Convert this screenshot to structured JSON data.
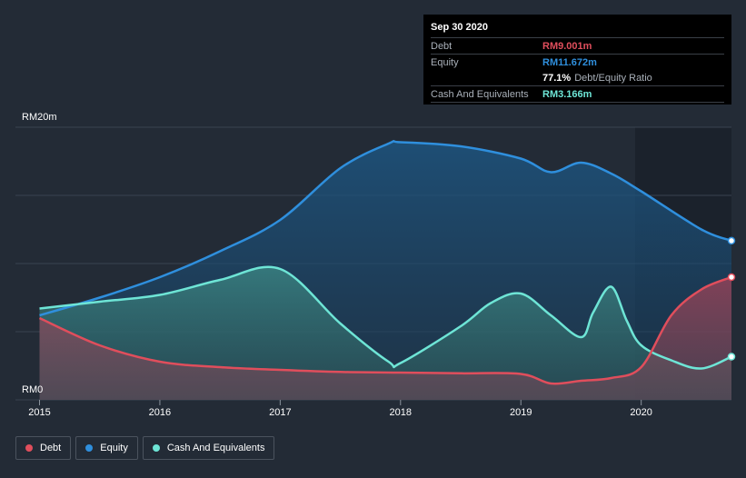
{
  "chart_data": {
    "type": "area",
    "currency_prefix": "RM",
    "ylim": [
      0,
      20
    ],
    "y_tick_labels": [
      "RM20m",
      "RM0"
    ],
    "x_ticks": [
      {
        "x": 2015,
        "label": "2015"
      },
      {
        "x": 2016,
        "label": "2016"
      },
      {
        "x": 2017,
        "label": "2017"
      },
      {
        "x": 2018,
        "label": "2018"
      },
      {
        "x": 2019,
        "label": "2019"
      },
      {
        "x": 2020,
        "label": "2020"
      }
    ],
    "xlim": [
      2014.8,
      2020.75
    ],
    "shaded_region_start": 2019.95,
    "series": [
      {
        "name": "Equity",
        "color": "#2f8fdd",
        "points": [
          [
            2015,
            6.2
          ],
          [
            2015.5,
            7.5
          ],
          [
            2016,
            9.0
          ],
          [
            2016.5,
            10.9
          ],
          [
            2017,
            13.2
          ],
          [
            2017.5,
            17.0
          ],
          [
            2017.9,
            18.8
          ],
          [
            2018,
            18.9
          ],
          [
            2018.5,
            18.6
          ],
          [
            2019,
            17.7
          ],
          [
            2019.25,
            16.7
          ],
          [
            2019.5,
            17.4
          ],
          [
            2019.75,
            16.6
          ],
          [
            2020,
            15.3
          ],
          [
            2020.5,
            12.5
          ],
          [
            2020.75,
            11.672
          ]
        ]
      },
      {
        "name": "Cash And Equivalents",
        "color": "#6ee5d6",
        "points": [
          [
            2015,
            6.7
          ],
          [
            2015.5,
            7.2
          ],
          [
            2016,
            7.7
          ],
          [
            2016.5,
            8.8
          ],
          [
            2017,
            9.6
          ],
          [
            2017.5,
            5.6
          ],
          [
            2017.9,
            2.8
          ],
          [
            2018,
            2.7
          ],
          [
            2018.5,
            5.4
          ],
          [
            2018.75,
            7.1
          ],
          [
            2019,
            7.8
          ],
          [
            2019.25,
            6.2
          ],
          [
            2019.5,
            4.6
          ],
          [
            2019.6,
            6.4
          ],
          [
            2019.75,
            8.3
          ],
          [
            2019.88,
            5.8
          ],
          [
            2020,
            4.0
          ],
          [
            2020.25,
            2.9
          ],
          [
            2020.5,
            2.3
          ],
          [
            2020.75,
            3.166
          ]
        ]
      },
      {
        "name": "Debt",
        "color": "#e04e5c",
        "points": [
          [
            2015,
            6.0
          ],
          [
            2015.5,
            4.0
          ],
          [
            2016,
            2.8
          ],
          [
            2016.5,
            2.4
          ],
          [
            2017,
            2.2
          ],
          [
            2017.5,
            2.05
          ],
          [
            2018,
            2.0
          ],
          [
            2018.5,
            1.95
          ],
          [
            2019,
            1.9
          ],
          [
            2019.25,
            1.2
          ],
          [
            2019.5,
            1.4
          ],
          [
            2019.75,
            1.6
          ],
          [
            2020,
            2.4
          ],
          [
            2020.25,
            6.2
          ],
          [
            2020.5,
            8.1
          ],
          [
            2020.75,
            9.001
          ]
        ]
      }
    ]
  },
  "tooltip": {
    "date": "Sep 30 2020",
    "rows": {
      "debt_label": "Debt",
      "debt_value": "RM9.001m",
      "equity_label": "Equity",
      "equity_value": "RM11.672m",
      "ratio_value": "77.1%",
      "ratio_label": "Debt/Equity Ratio",
      "cash_label": "Cash And Equivalents",
      "cash_value": "RM3.166m"
    },
    "colors": {
      "debt": "#e04e5c",
      "equity": "#2f8fdd",
      "cash": "#6ee5d6"
    }
  },
  "legend": {
    "items": [
      {
        "label": "Debt",
        "color": "#e04e5c"
      },
      {
        "label": "Equity",
        "color": "#2f8fdd"
      },
      {
        "label": "Cash And Equivalents",
        "color": "#6ee5d6"
      }
    ]
  }
}
